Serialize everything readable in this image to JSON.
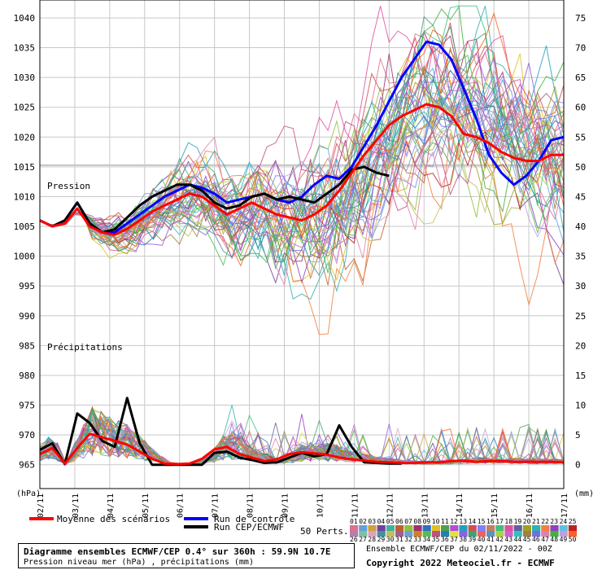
{
  "chart_data": {
    "type": "line",
    "left_unit": "(hPa)",
    "right_unit": "(mm)",
    "pressure_label": "Pression",
    "precip_label": "Précipitations",
    "x_labels": [
      "02/11",
      "03/11",
      "04/11",
      "05/11",
      "06/11",
      "07/11",
      "08/11",
      "09/11",
      "10/11",
      "11/11",
      "12/11",
      "13/11",
      "14/11",
      "15/11",
      "16/11",
      "17/11"
    ],
    "y_left_ticks": [
      1040,
      1035,
      1030,
      1025,
      1020,
      1015,
      1010,
      1005,
      1000,
      995,
      990,
      985,
      980,
      975,
      970,
      965
    ],
    "y_right_ticks": [
      75,
      70,
      65,
      60,
      55,
      50,
      45,
      40,
      35,
      30,
      25,
      20,
      15,
      10,
      5,
      0
    ],
    "ylim_left": [
      961,
      1043
    ],
    "step_hours": 6,
    "series": [
      {
        "name": "Moyenne des scénarios",
        "color": "#ff0000",
        "pressure": [
          1006,
          1005,
          1005.5,
          1008,
          1005,
          1004,
          1003.6,
          1004.6,
          1006,
          1007.5,
          1008.5,
          1009.5,
          1010.5,
          1010,
          1008.5,
          1007,
          1008,
          1009,
          1008,
          1007,
          1006.5,
          1006,
          1007,
          1008.5,
          1011,
          1014,
          1017,
          1019.5,
          1022,
          1023.5,
          1024.5,
          1025.5,
          1025,
          1023.5,
          1020.5,
          1020,
          1019,
          1017.5,
          1016.5,
          1016,
          1016,
          1017,
          1017
        ],
        "precip": [
          1.8,
          2.8,
          0.2,
          2.8,
          5.2,
          4.6,
          4,
          3.4,
          2.2,
          1,
          0.2,
          0.1,
          0.2,
          1,
          2.6,
          3,
          1.8,
          1.2,
          0.6,
          0.9,
          1.8,
          2.1,
          1.9,
          1.7,
          1.2,
          0.9,
          0.7,
          0.5,
          0.4,
          0.3,
          0.3,
          0.4,
          0.4,
          0.6,
          0.7,
          0.5,
          0.6,
          0.6,
          0.5,
          0.5,
          0.5,
          0.5,
          0.4
        ]
      },
      {
        "name": "Run de contrôle",
        "color": "#0000ff",
        "pressure": [
          1006,
          1005,
          1006,
          1009,
          1005.5,
          1004,
          1004,
          1005.5,
          1007,
          1008.5,
          1010,
          1011,
          1012,
          1011.5,
          1010.5,
          1009,
          1009.5,
          1010,
          1010.5,
          1009.5,
          1009,
          1010,
          1012,
          1013.5,
          1013,
          1015,
          1018.5,
          1022,
          1026,
          1030,
          1033,
          1036,
          1035.5,
          1033,
          1028,
          1023,
          1017,
          1014,
          1012,
          1013.5,
          1016,
          1019.5,
          1020
        ]
      },
      {
        "name": "Run CEP/ECMWF",
        "color": "#000000",
        "pressure": [
          1006,
          1005,
          1006,
          1009,
          1005.5,
          1004,
          1004.5,
          1006.5,
          1008.5,
          1010,
          1011,
          1012,
          1012,
          1011,
          1009,
          1008,
          1008.5,
          1010,
          1010.5,
          1009.5,
          1010,
          1009.5,
          1009,
          1010.5,
          1012,
          1014.5,
          1015,
          1014,
          1013.5
        ],
        "precip": [
          2.5,
          3.6,
          0.1,
          8.6,
          7,
          4,
          3,
          11.2,
          3.6,
          0,
          0,
          0,
          0,
          0,
          2,
          2.2,
          1.2,
          0.8,
          0.3,
          0.4,
          1.2,
          2,
          1.4,
          1.8,
          6.6,
          3,
          0.4,
          0.3,
          0.2,
          0.2
        ]
      }
    ],
    "ensemble_members": 50
  },
  "legend": {
    "mean": "Moyenne des scénarios",
    "control": "Run de contrôle",
    "cep": "Run CEP/ECMWF",
    "perts": "50 Perts.",
    "row1": [
      "01",
      "02",
      "03",
      "04",
      "05",
      "06",
      "07",
      "08",
      "09",
      "10",
      "11",
      "12",
      "13",
      "14",
      "15",
      "16",
      "17",
      "18",
      "19",
      "20",
      "21",
      "22",
      "23",
      "24",
      "25"
    ],
    "row2": [
      "26",
      "27",
      "28",
      "29",
      "30",
      "31",
      "32",
      "33",
      "34",
      "35",
      "36",
      "37",
      "38",
      "39",
      "40",
      "41",
      "42",
      "43",
      "44",
      "45",
      "46",
      "47",
      "48",
      "49",
      "50"
    ],
    "colors": [
      "#e07090",
      "#60a0e0",
      "#d0a040",
      "#7040a0",
      "#40b0a0",
      "#c06030",
      "#90c040",
      "#a03070",
      "#3070c0",
      "#e0c020",
      "#50a050",
      "#b050d0",
      "#20a0c0",
      "#d05050",
      "#8080ff",
      "#c08060",
      "#40c080",
      "#e050a0",
      "#6060a0",
      "#a0a020",
      "#30b0b0",
      "#f08040",
      "#9040c0",
      "#60c0e0",
      "#c02020"
    ],
    "colors2": [
      "#b080b0",
      "#80c0a0",
      "#e0a0c0",
      "#4090a0",
      "#c0c060",
      "#a06090",
      "#70a0d0",
      "#d08020",
      "#50c050",
      "#c05080",
      "#2080b0",
      "#e0e040",
      "#9060e0",
      "#40a070",
      "#f06060",
      "#6090c0",
      "#b0d040",
      "#d060d0",
      "#30c0c0",
      "#a08040",
      "#7070e0",
      "#e080b0",
      "#40b040",
      "#c0a0e0",
      "#ff6020"
    ]
  },
  "info": {
    "title": "Diagramme ensembles ECMWF/CEP 0.4° sur 360h : 59.9N 10.7E",
    "subtitle": "Pression niveau mer (hPa) , précipitations (mm)",
    "ensemble": "Ensemble ECMWF/CEP du 02/11/2022 - 00Z",
    "copyright": "Copyright 2022 Meteociel.fr - ECMWF"
  }
}
